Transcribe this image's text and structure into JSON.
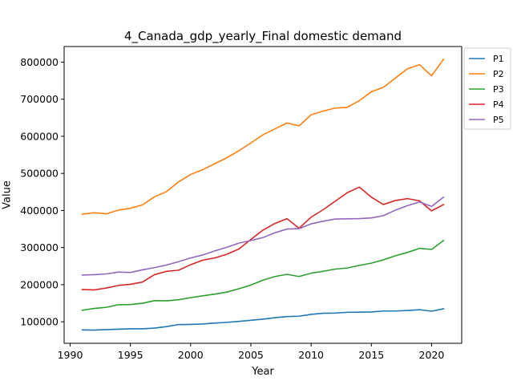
{
  "chart_data": {
    "type": "line",
    "title": "4_Canada_gdp_yearly_Final domestic demand",
    "xlabel": "Year",
    "ylabel": "Value",
    "xlim": [
      1989.5,
      2022.5
    ],
    "ylim": [
      42000,
      842000
    ],
    "xticks": [
      1990,
      1995,
      2000,
      2005,
      2010,
      2015,
      2020
    ],
    "yticks": [
      100000,
      200000,
      300000,
      400000,
      500000,
      600000,
      700000,
      800000
    ],
    "ytick_labels": [
      "100000",
      "200000",
      "300000",
      "400000",
      "500000",
      "600000",
      "700000",
      "800000"
    ],
    "grid": false,
    "legend_position": "outside-top-right",
    "x": [
      1991,
      1992,
      1993,
      1994,
      1995,
      1996,
      1997,
      1998,
      1999,
      2000,
      2001,
      2002,
      2003,
      2004,
      2005,
      2006,
      2007,
      2008,
      2009,
      2010,
      2011,
      2012,
      2013,
      2014,
      2015,
      2016,
      2017,
      2018,
      2019,
      2020,
      2021
    ],
    "series": [
      {
        "name": "P1",
        "color": "#1f77b4",
        "values": [
          78000,
          77500,
          79000,
          80000,
          81000,
          81000,
          83000,
          87000,
          92500,
          93000,
          94000,
          96500,
          98500,
          101000,
          104000,
          107000,
          111000,
          114000,
          115000,
          120000,
          123000,
          123500,
          125500,
          126000,
          126500,
          129000,
          129000,
          130500,
          132500,
          128500,
          135000
        ]
      },
      {
        "name": "P2",
        "color": "#ff7f0e",
        "values": [
          390000,
          394000,
          391000,
          401000,
          406000,
          415000,
          437000,
          451000,
          477000,
          497000,
          510000,
          526000,
          542000,
          561000,
          582000,
          604000,
          620000,
          636000,
          628000,
          658000,
          668000,
          676000,
          678000,
          696000,
          720000,
          732000,
          757000,
          782000,
          793000,
          763000,
          808000
        ]
      },
      {
        "name": "P3",
        "color": "#2ca02c",
        "values": [
          131000,
          136000,
          139000,
          146000,
          146500,
          150000,
          157000,
          156500,
          159500,
          165000,
          170000,
          174500,
          180000,
          189000,
          199000,
          212000,
          222000,
          228000,
          222000,
          231000,
          236000,
          242000,
          245000,
          252000,
          258000,
          267000,
          278000,
          287000,
          298000,
          295000,
          319000
        ]
      },
      {
        "name": "P4",
        "color": "#d62728",
        "values": [
          187000,
          186000,
          191000,
          198000,
          201000,
          207000,
          227000,
          236000,
          239000,
          254000,
          266000,
          272000,
          282000,
          296000,
          322000,
          347000,
          365000,
          378000,
          352000,
          382000,
          402000,
          425000,
          448000,
          463000,
          436000,
          416000,
          427000,
          432000,
          426000,
          399000,
          416000
        ]
      },
      {
        "name": "P5",
        "color": "#9467bd",
        "values": [
          226000,
          227000,
          229000,
          234000,
          233000,
          240000,
          246000,
          253000,
          262000,
          272000,
          280000,
          291000,
          301000,
          312000,
          319000,
          327000,
          340000,
          350000,
          351000,
          364000,
          371000,
          377000,
          377500,
          378000,
          380000,
          386000,
          401000,
          413000,
          423000,
          411000,
          436000
        ]
      }
    ]
  }
}
